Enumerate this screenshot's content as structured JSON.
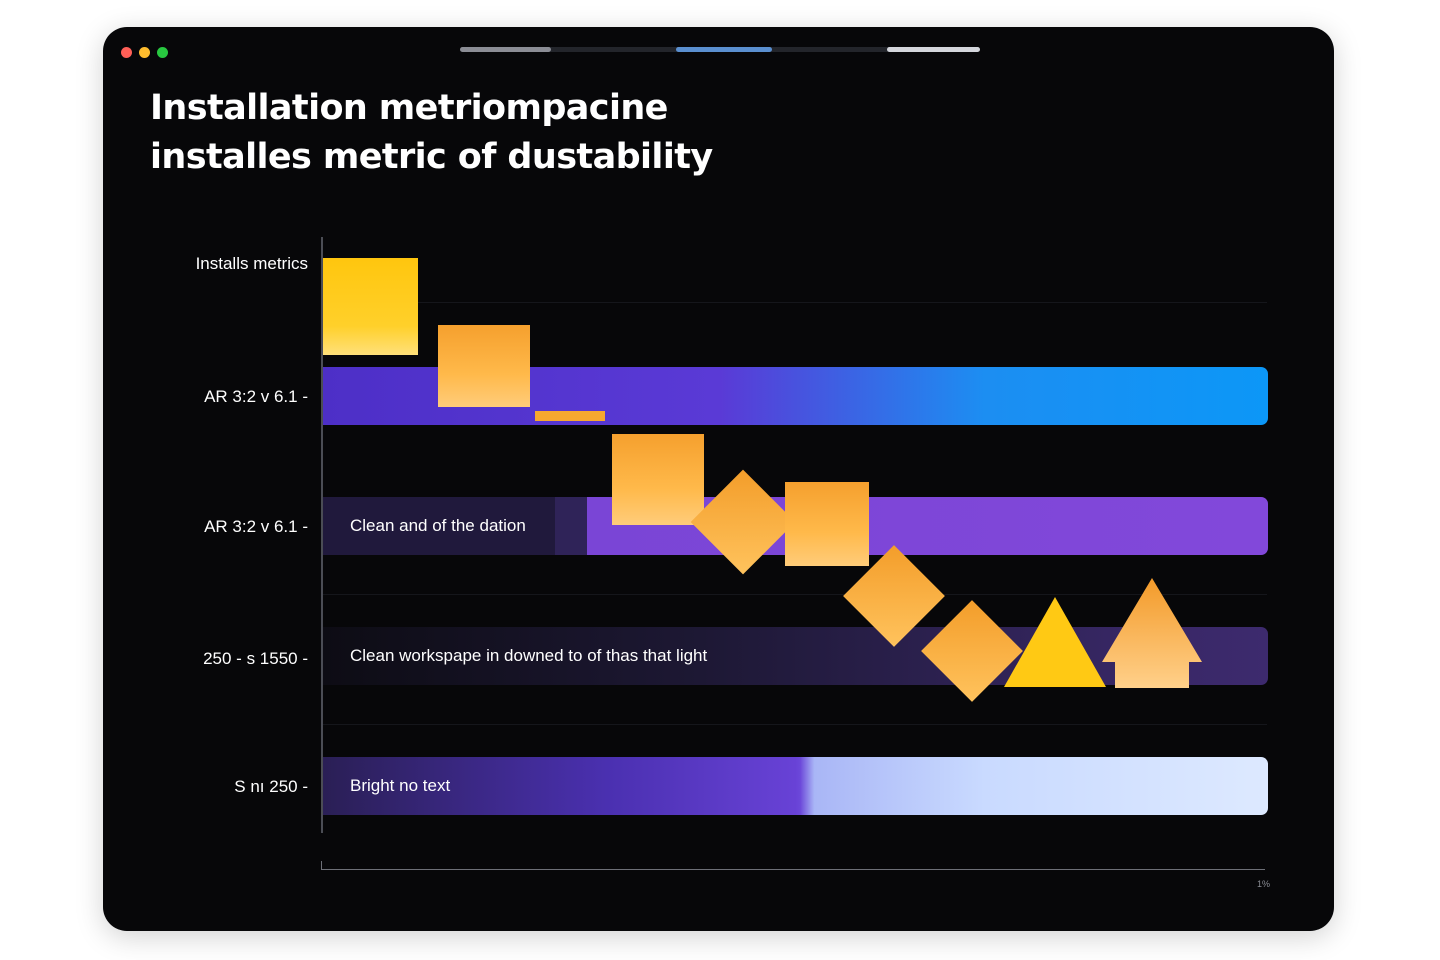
{
  "window": {
    "controls": {
      "close_color": "#ff5f57",
      "minimize_color": "#febc2e",
      "maximize_color": "#28c840"
    },
    "tabs_active_index": 1
  },
  "chart_title": {
    "line1": "Installation metriompacine",
    "line2": "installes metric of dustability"
  },
  "chart_data": {
    "type": "bar",
    "orientation": "horizontal",
    "categories": [
      "Installs metrics",
      "AR 3:2  v 6.1 -",
      "AR 3:2 v 6.1 -",
      "250 - s 1550 -",
      "S nı 250 -"
    ],
    "bar_labels": [
      "",
      "",
      "Clean and of the dation",
      "Clean workspape in downed to of thas that light",
      "Bright no text"
    ],
    "x_axis_end_label": "1%",
    "grid": true,
    "colors": {
      "bar_gradient_start": "#5b38d6",
      "bar_gradient_end": "#0d97f6",
      "bar_purple": "#8048d9",
      "bar_dark_purple": "#2b1f55",
      "bar_light": "#d7e6fe",
      "marker_yellow": "#ffcd11",
      "marker_orange": "#f8a632"
    }
  }
}
